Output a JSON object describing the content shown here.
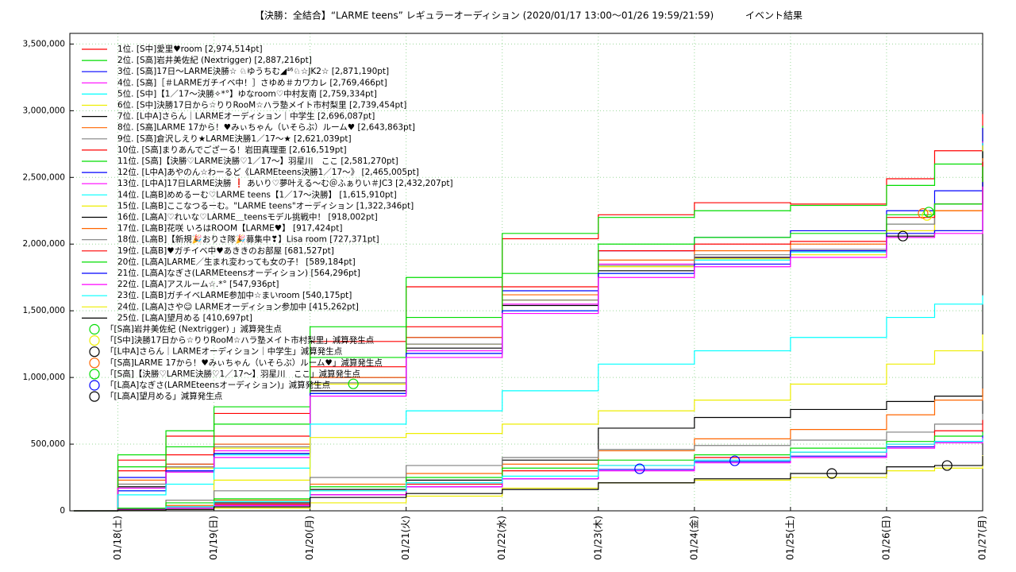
{
  "chart_data": {
    "type": "step",
    "title": "【決勝：全結合】“LARME teens” レギュラーオーディション (2020/01/17 13:00〜01/26 19:59/21:59)",
    "title_right": "イベント結果",
    "x": [
      17.54,
      18,
      18.5,
      19,
      20,
      21,
      22,
      23,
      24,
      25,
      26,
      26.5,
      27
    ],
    "xlim": [
      17.5,
      27
    ],
    "xticks": [
      {
        "value": 18,
        "label": "01/18(土)"
      },
      {
        "value": 19,
        "label": "01/19(日)"
      },
      {
        "value": 20,
        "label": "01/20(月)"
      },
      {
        "value": 21,
        "label": "01/21(火)"
      },
      {
        "value": 22,
        "label": "01/22(水)"
      },
      {
        "value": 23,
        "label": "01/23(木)"
      },
      {
        "value": 24,
        "label": "01/24(金)"
      },
      {
        "value": 25,
        "label": "01/25(土)"
      },
      {
        "value": 26,
        "label": "01/26(日)"
      },
      {
        "value": 27,
        "label": "01/27(月)"
      }
    ],
    "ylim": [
      0,
      3580000
    ],
    "yticks": [
      0,
      {
        "value": 500000,
        "label": "500,000"
      },
      {
        "value": 1000000,
        "label": "1,000,000"
      },
      {
        "value": 1500000,
        "label": "1,500,000"
      },
      {
        "value": 2000000,
        "label": "2,000,000"
      },
      {
        "value": 2500000,
        "label": "2,500,000"
      },
      {
        "value": 3000000,
        "label": "3,000,000"
      },
      {
        "value": 3500000,
        "label": "3,500,000"
      }
    ],
    "grid": true,
    "legend": "top-left",
    "series": [
      {
        "name": "1位. [S中]愛里♥room [2,974,514pt]",
        "color": "#ff0000",
        "values": [
          0,
          380000,
          560000,
          730000,
          1270000,
          1680000,
          2040000,
          2220000,
          2310000,
          2300000,
          2490000,
          2700000,
          2974514
        ]
      },
      {
        "name": "2位. [S高]岩井美佐紀 (Nextrigger) [2,887,216pt]",
        "color": "#00dd00",
        "values": [
          0,
          420000,
          600000,
          780000,
          1380000,
          1750000,
          2080000,
          2200000,
          2250000,
          2290000,
          2440000,
          2600000,
          2887216
        ]
      },
      {
        "name": "3位. [S高]17日〜LARME決勝☆ ♘ゆうちむ◢⁴⁶♘☆JK2☆ [2,871,190pt]",
        "color": "#0000ff",
        "values": [
          0,
          250000,
          350000,
          500000,
          1000000,
          1300000,
          1650000,
          1950000,
          2050000,
          2100000,
          2250000,
          2400000,
          2871190
        ]
      },
      {
        "name": "4位. [S高]［＃LARMEガチイベ中！］さゆめ＃カワカレ [2,769,466pt]",
        "color": "#ff00ff",
        "values": [
          0,
          200000,
          330000,
          450000,
          900000,
          1200000,
          1550000,
          1850000,
          1900000,
          1960000,
          2100000,
          2250000,
          2769466
        ]
      },
      {
        "name": "5位. [S中]【1／17〜決勝✧*°】ゆなroom♡中村友南 [2,759,334pt]",
        "color": "#00ffff",
        "values": [
          0,
          150000,
          300000,
          420000,
          880000,
          1180000,
          1500000,
          1780000,
          1880000,
          1940000,
          2150000,
          2300000,
          2759334
        ]
      },
      {
        "name": "6位. [S中]決勝17日から☆りりRooM☆ハラ塾メイト市村梨里 [2,739,454pt]",
        "color": "#eeee00",
        "values": [
          0,
          200000,
          320000,
          470000,
          950000,
          1250000,
          1580000,
          1830000,
          1890000,
          1920000,
          2100000,
          2250000,
          2739454
        ]
      },
      {
        "name": "7位. [L中A]さらん｜LARMEオーディション｜中学生 [2,696,087pt]",
        "color": "#000000",
        "values": [
          0,
          180000,
          300000,
          430000,
          900000,
          1220000,
          1540000,
          1800000,
          1900000,
          1950000,
          2060000,
          2100000,
          2696087
        ]
      },
      {
        "name": "8位. [S高]LARME 17から！♥みぃちゃん（いそらぶ）ルーム♥ [2,643,863pt]",
        "color": "#ff6600",
        "values": [
          0,
          230000,
          350000,
          500000,
          1000000,
          1300000,
          1620000,
          1880000,
          1950000,
          2000000,
          2150000,
          2250000,
          2643863
        ]
      },
      {
        "name": "9位. [S高]倉沢しえり★LARME決勝1／17〜★ [2,621,039pt]",
        "color": "#808080",
        "values": [
          0,
          200000,
          330000,
          480000,
          960000,
          1250000,
          1580000,
          1840000,
          1920000,
          1960000,
          2150000,
          2300000,
          2621039
        ]
      },
      {
        "name": "10位. [S高]まりあんでござーる！岩田真理亜 [2,616,519pt]",
        "color": "#ff0000",
        "values": [
          0,
          300000,
          420000,
          560000,
          1080000,
          1380000,
          1680000,
          1950000,
          2000000,
          2020000,
          2200000,
          2300000,
          2616519
        ]
      },
      {
        "name": "11位. [S高]【決勝♡LARME決勝♡1／17〜】羽星川　ここ [2,581,270pt]",
        "color": "#00dd00",
        "values": [
          0,
          330000,
          480000,
          650000,
          1150000,
          1450000,
          1780000,
          2000000,
          2050000,
          2080000,
          2220000,
          2300000,
          2581270
        ]
      },
      {
        "name": "12位. [L中A]あやのん☆わーるど《LARMEteens決勝1／17〜》 [2,465,005pt]",
        "color": "#0000ff",
        "values": [
          0,
          150000,
          300000,
          430000,
          880000,
          1180000,
          1500000,
          1780000,
          1850000,
          1950000,
          2080000,
          2100000,
          2465005
        ]
      },
      {
        "name": "13位. [L中A]17日LARME決勝 ❗ あいり♡夢叶える〜む＠ふぁりい＃JC3 [2,432,207pt]",
        "color": "#ff00ff",
        "values": [
          0,
          170000,
          290000,
          400000,
          860000,
          1150000,
          1480000,
          1750000,
          1830000,
          1900000,
          2050000,
          2080000,
          2432207
        ]
      },
      {
        "name": "14位. [L高B]めめるーむ♡LARME teens【1／17〜決勝】 [1,615,910pt]",
        "color": "#00ffff",
        "values": [
          0,
          120000,
          200000,
          320000,
          650000,
          750000,
          900000,
          1100000,
          1200000,
          1300000,
          1450000,
          1550000,
          1615910
        ]
      },
      {
        "name": "15位. [L高B]ここなつるーむ。\"LARME teens\"オーディション [1,322,346pt]",
        "color": "#eeee00",
        "values": [
          0,
          20000,
          80000,
          230000,
          550000,
          580000,
          650000,
          750000,
          830000,
          950000,
          1100000,
          1200000,
          1322346
        ]
      },
      {
        "name": "16位. [L高A]♡れいな♡LARME＿teensモデル挑戦中！ [918,002pt]",
        "color": "#000000",
        "values": [
          0,
          20000,
          30000,
          60000,
          160000,
          230000,
          380000,
          620000,
          700000,
          760000,
          820000,
          860000,
          918002
        ]
      },
      {
        "name": "17位. [L高B]花咲 いろはROOM【LARME♥】 [917,424pt]",
        "color": "#ff6600",
        "values": [
          0,
          10000,
          40000,
          80000,
          200000,
          280000,
          350000,
          450000,
          540000,
          610000,
          720000,
          830000,
          917424
        ]
      },
      {
        "name": "18位. [L高B]【新規🎉おりさ隊🎉募集中❣】Lisa room [727,371pt]",
        "color": "#808080",
        "values": [
          0,
          20000,
          80000,
          150000,
          250000,
          340000,
          400000,
          460000,
          490000,
          530000,
          590000,
          650000,
          727371
        ]
      },
      {
        "name": "19位. [L高B]♥ガチイベ中♥あききのお部屋 [681,527pt]",
        "color": "#ff0000",
        "values": [
          0,
          10000,
          30000,
          50000,
          120000,
          200000,
          300000,
          340000,
          400000,
          440000,
          500000,
          600000,
          681527
        ]
      },
      {
        "name": "20位. [L高A]LARME／生まれ変わっても女の子！ [589,184pt]",
        "color": "#00dd00",
        "values": [
          0,
          20000,
          60000,
          90000,
          180000,
          250000,
          320000,
          380000,
          420000,
          470000,
          520000,
          560000,
          589184
        ]
      },
      {
        "name": "21位. [L高A]なぎさ(LARMEteensオーディション) [564,296pt]",
        "color": "#0000ff",
        "values": [
          0,
          10000,
          20000,
          40000,
          120000,
          180000,
          240000,
          310000,
          370000,
          410000,
          480000,
          520000,
          564296
        ]
      },
      {
        "name": "22位. [L高A]アスルーム☆.*° [547,936pt]",
        "color": "#ff00ff",
        "values": [
          0,
          10000,
          20000,
          40000,
          120000,
          180000,
          240000,
          300000,
          360000,
          400000,
          470000,
          510000,
          547936
        ]
      },
      {
        "name": "23位. [L高B]ガチイベLARME参加中☆まいroom [540,175pt]",
        "color": "#00ffff",
        "values": [
          0,
          5000,
          30000,
          70000,
          150000,
          210000,
          260000,
          340000,
          380000,
          440000,
          500000,
          520000,
          540175
        ]
      },
      {
        "name": "24位. [L高A]さや☺ LARMEオーディション参加中 [415,262pt]",
        "color": "#eeee00",
        "values": [
          0,
          5000,
          10000,
          20000,
          60000,
          110000,
          170000,
          210000,
          230000,
          250000,
          300000,
          320000,
          415262
        ]
      },
      {
        "name": "25位. [L高A]望月める [410,697pt]",
        "color": "#000000",
        "values": [
          0,
          5000,
          10000,
          30000,
          100000,
          130000,
          160000,
          210000,
          240000,
          280000,
          330000,
          340000,
          410697
        ]
      }
    ],
    "markers": [
      {
        "name": "「[S高]岩井美佐紀 (Nextrigger) 」減算発生点",
        "color": "#00dd00",
        "x": [
          20.45
        ],
        "y": [
          952000
        ]
      },
      {
        "name": "「[S中]決勝17日から☆りりRooM☆ハラ塾メイト市村梨里」減算発生点",
        "color": "#eeee00",
        "x": [
          26.42
        ],
        "y": [
          2215000
        ]
      },
      {
        "name": "「[L中A]さらん｜LARMEオーディション｜中学生」減算発生点",
        "color": "#000000",
        "x": [
          26.17
        ],
        "y": [
          2060000
        ]
      },
      {
        "name": "「[S高]LARME 17から！♥みぃちゃん（いそらぶ）ルーム♥」減算発生点",
        "color": "#ff6600",
        "x": [
          26.38
        ],
        "y": [
          2230000
        ]
      },
      {
        "name": "「[S高]【決勝♡LARME決勝♡1／17〜】羽星川　ここ」減算発生点",
        "color": "#00dd00",
        "x": [
          26.44
        ],
        "y": [
          2240000
        ]
      },
      {
        "name": "「[L高A]なぎさ(LARMEteensオーディション)」減算発生点",
        "color": "#0000ff",
        "x": [
          23.43,
          24.42
        ],
        "y": [
          315000,
          375000
        ]
      },
      {
        "name": "「[L高A]望月める」減算発生点",
        "color": "#000000",
        "x": [
          25.43,
          26.63
        ],
        "y": [
          280000,
          340000
        ]
      }
    ]
  }
}
